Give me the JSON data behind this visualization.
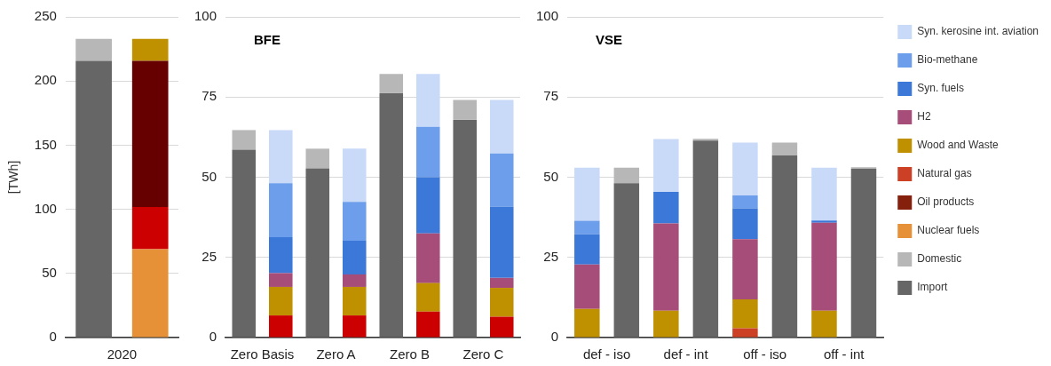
{
  "chart_data": [
    {
      "type": "bar",
      "stacked": true,
      "ylabel": "[TWh]",
      "categories": [
        "2020",
        null
      ],
      "ylim": [
        0,
        250
      ],
      "yticks": [
        0,
        50,
        100,
        150,
        200,
        250
      ],
      "grid": "y",
      "legend": false,
      "series": [
        {
          "color": "#b7b7b7",
          "values": [
            17.1,
            null
          ]
        },
        {
          "color": "#666666",
          "values": [
            215.8,
            null
          ]
        },
        {
          "color": "#bf9000",
          "values": [
            null,
            17.1
          ]
        },
        {
          "color": "#660000",
          "values": [
            null,
            114.0
          ]
        },
        {
          "color": "#cc0000",
          "values": [
            null,
            32.9
          ]
        },
        {
          "color": "#e69138",
          "values": [
            null,
            68.9
          ]
        }
      ]
    },
    {
      "type": "bar",
      "stacked": true,
      "annotations": [
        "BFE"
      ],
      "categories": [
        "Zero Basis",
        null,
        "Zero A",
        null,
        "Zero B",
        null,
        "Zero C",
        null
      ],
      "ylim": [
        0,
        100
      ],
      "yticks": [
        0,
        25,
        50,
        75,
        100
      ],
      "grid": "y",
      "legend": false,
      "series": [
        {
          "color": "#b7b7b7",
          "values": [
            6.1,
            null,
            6.1,
            null,
            6.0,
            null,
            6.2,
            null
          ]
        },
        {
          "color": "#666666",
          "values": [
            58.6,
            null,
            52.8,
            null,
            76.2,
            null,
            67.9,
            null
          ]
        },
        {
          "color": "#c9daf8",
          "values": [
            null,
            16.6,
            null,
            16.6,
            null,
            16.5,
            null,
            16.7
          ]
        },
        {
          "color": "#6d9eeb",
          "values": [
            null,
            16.8,
            null,
            12.1,
            null,
            15.7,
            null,
            16.6
          ]
        },
        {
          "color": "#3c78d8",
          "values": [
            null,
            11.2,
            null,
            10.5,
            null,
            17.5,
            null,
            22.2
          ]
        },
        {
          "color": "#a64d79",
          "values": [
            null,
            4.3,
            null,
            3.9,
            null,
            15.5,
            null,
            3.1
          ]
        },
        {
          "color": "#bf9000",
          "values": [
            null,
            8.9,
            null,
            8.9,
            null,
            8.9,
            null,
            9.0
          ]
        },
        {
          "color": "#cc0000",
          "values": [
            null,
            6.9,
            null,
            6.9,
            null,
            8.1,
            null,
            6.5
          ]
        }
      ]
    },
    {
      "type": "bar",
      "stacked": true,
      "annotations": [
        "VSE"
      ],
      "categories": [
        "def - iso",
        null,
        "def - int",
        null,
        "off - iso",
        null,
        "off - int",
        null
      ],
      "ylim": [
        0,
        100
      ],
      "yticks": [
        0,
        25,
        50,
        75,
        100
      ],
      "grid": "y",
      "legend": "right",
      "series": [
        {
          "name": "Syn. kerosine int. aviation",
          "color": "#c9daf8",
          "values": [
            16.6,
            null,
            16.5,
            null,
            16.5,
            null,
            16.5,
            null
          ]
        },
        {
          "name": "Bio-methane",
          "color": "#6d9eeb",
          "values": [
            4.2,
            null,
            null,
            null,
            4.0,
            null,
            null,
            null
          ]
        },
        {
          "name": "Syn. fuels",
          "color": "#3c78d8",
          "values": [
            9.4,
            null,
            9.8,
            null,
            9.6,
            null,
            0.7,
            null
          ]
        },
        {
          "name": "H2",
          "color": "#a64d79",
          "values": [
            13.9,
            null,
            27.2,
            null,
            18.8,
            null,
            27.4,
            null
          ]
        },
        {
          "name": "Wood and Waste",
          "color": "#bf9000",
          "values": [
            8.9,
            null,
            8.4,
            null,
            9.0,
            null,
            8.4,
            null
          ]
        },
        {
          "name": "Natural gas",
          "color": "#cc4125",
          "values": [
            null,
            null,
            null,
            null,
            2.9,
            null,
            null,
            null
          ]
        },
        {
          "name": "Oil products",
          "color": "#85200c",
          "values": [
            null,
            null,
            null,
            null,
            null,
            null,
            null,
            null
          ]
        },
        {
          "name": "Nuclear fuels",
          "color": "#e69138",
          "values": [
            null,
            null,
            null,
            null,
            null,
            null,
            null,
            null
          ]
        },
        {
          "name": "Domestic",
          "color": "#b7b7b7",
          "values": [
            null,
            4.9,
            null,
            0.6,
            null,
            4.0,
            null,
            0.5
          ]
        },
        {
          "name": "Import",
          "color": "#666666",
          "values": [
            null,
            48.1,
            null,
            61.4,
            null,
            56.8,
            null,
            52.6
          ]
        }
      ]
    }
  ]
}
